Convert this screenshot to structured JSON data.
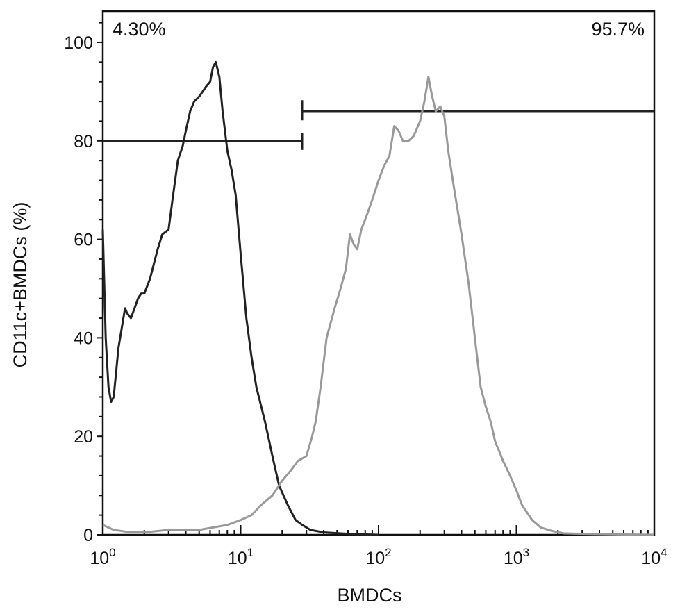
{
  "chart_data": {
    "type": "line",
    "title": "",
    "xlabel": "BMDCs",
    "ylabel": "CD11c+BMDCs (%)",
    "x_scale": "log",
    "xlim": [
      1,
      10000
    ],
    "ylim": [
      0,
      105
    ],
    "x_ticks": [
      {
        "value": 1,
        "base": "10",
        "exp": "0"
      },
      {
        "value": 10,
        "base": "10",
        "exp": "1"
      },
      {
        "value": 100,
        "base": "10",
        "exp": "2"
      },
      {
        "value": 1000,
        "base": "10",
        "exp": "3"
      },
      {
        "value": 10000,
        "base": "10",
        "exp": "4"
      }
    ],
    "y_ticks": [
      "0",
      "20",
      "40",
      "60",
      "80",
      "100"
    ],
    "grid": false,
    "legend": "none",
    "gates": [
      {
        "label": "4.30%",
        "x_start": 1,
        "x_end": 28,
        "y": 80
      },
      {
        "label": "95.7%",
        "x_start": 28,
        "x_end": 10000,
        "y": 86
      }
    ],
    "series": [
      {
        "color": "#222222",
        "x": [
          1,
          1.05,
          1.1,
          1.15,
          1.2,
          1.3,
          1.45,
          1.5,
          1.6,
          1.7,
          1.8,
          1.9,
          2.0,
          2.2,
          2.5,
          2.7,
          3.0,
          3.2,
          3.5,
          3.8,
          4.0,
          4.3,
          4.6,
          5.0,
          5.3,
          5.6,
          6.0,
          6.3,
          6.6,
          7.0,
          7.4,
          8.0,
          8.6,
          9.2,
          10,
          11,
          12,
          13,
          15,
          17,
          19,
          22,
          25,
          28,
          32,
          40,
          60,
          100
        ],
        "y": [
          62,
          40,
          30,
          27,
          28,
          38,
          46,
          45,
          44,
          46,
          48,
          49,
          49,
          52,
          58,
          61,
          62,
          68,
          76,
          79,
          82,
          86,
          88,
          89,
          90,
          91,
          92,
          95,
          96,
          93,
          86,
          78,
          74,
          69,
          57,
          44,
          36,
          30,
          23,
          16,
          10,
          6,
          3,
          2,
          1,
          0.5,
          0.2,
          0
        ]
      },
      {
        "color": "#999999",
        "x": [
          1,
          1.2,
          1.5,
          2,
          3,
          5,
          8,
          10,
          12,
          14,
          17,
          20,
          23,
          26,
          30,
          33,
          35,
          38,
          42,
          48,
          53,
          58,
          62,
          66,
          70,
          75,
          80,
          90,
          100,
          110,
          120,
          130,
          140,
          150,
          165,
          180,
          200,
          215,
          230,
          245,
          260,
          280,
          300,
          320,
          350,
          400,
          450,
          500,
          550,
          600,
          650,
          700,
          800,
          900,
          1000,
          1100,
          1300,
          1500,
          1800,
          2200,
          3000,
          5000,
          10000
        ],
        "y": [
          2,
          1,
          0.6,
          0.5,
          1,
          1,
          2,
          3,
          4,
          6,
          8,
          11,
          13,
          15,
          16,
          20,
          23,
          30,
          40,
          46,
          50,
          54,
          61,
          59,
          58,
          62,
          64,
          68,
          72,
          75,
          77,
          83,
          82,
          80,
          80,
          81,
          84,
          88,
          93,
          89,
          86,
          87,
          85,
          78,
          71,
          61,
          51,
          40,
          30,
          26,
          23,
          19,
          15,
          12,
          9,
          6,
          3,
          1.5,
          0.8,
          0.3,
          0.2,
          0.1,
          0
        ]
      }
    ]
  }
}
